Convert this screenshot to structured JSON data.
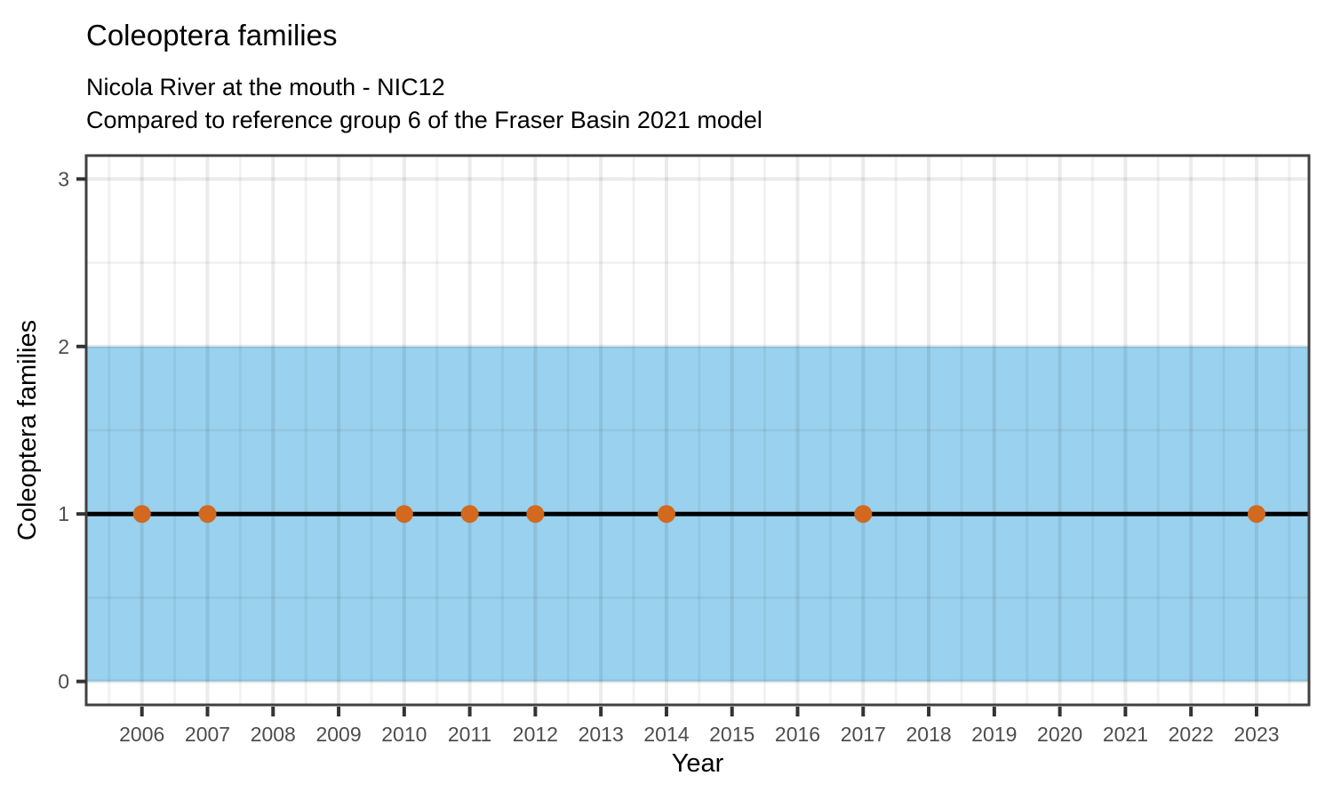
{
  "header": {
    "title": "Coleoptera families",
    "subtitle_line1": "Nicola River at the mouth - NIC12",
    "subtitle_line2": "Compared to reference group 6 of the Fraser Basin 2021 model"
  },
  "chart_data": {
    "type": "scatter",
    "title": "Coleoptera families",
    "subtitle": "Nicola River at the mouth - NIC12 / Compared to reference group 6 of the Fraser Basin 2021 model",
    "xlabel": "Year",
    "ylabel": "Coleoptera families",
    "xlim": [
      2005.15,
      2023.8
    ],
    "ylim": [
      -0.14,
      3.14
    ],
    "x_ticks": [
      2006,
      2007,
      2008,
      2009,
      2010,
      2011,
      2012,
      2013,
      2014,
      2015,
      2016,
      2017,
      2018,
      2019,
      2020,
      2021,
      2022,
      2023
    ],
    "y_ticks": [
      0,
      1,
      2,
      3
    ],
    "grid": "major and minor, light gray on white panel",
    "legend": "none",
    "reference_band": {
      "ymin": 0,
      "ymax": 2,
      "color": "#9AD1EE"
    },
    "reference_line": {
      "y": 1,
      "color": "#000000",
      "width": 5
    },
    "points": [
      {
        "x": 2006,
        "y": 1
      },
      {
        "x": 2007,
        "y": 1
      },
      {
        "x": 2010,
        "y": 1
      },
      {
        "x": 2011,
        "y": 1
      },
      {
        "x": 2012,
        "y": 1
      },
      {
        "x": 2014,
        "y": 1
      },
      {
        "x": 2017,
        "y": 1
      },
      {
        "x": 2023,
        "y": 1
      }
    ],
    "point_color": "#D2691E",
    "point_radius": 10,
    "colors": {
      "panel_background": "#ffffff",
      "panel_border": "#404040",
      "grid_major": "rgba(0,0,0,0.08)",
      "grid_minor": "rgba(0,0,0,0.05)",
      "tick_mark": "#333333",
      "tick_label": "#4d4d4d",
      "axis_title": "#000000"
    }
  }
}
